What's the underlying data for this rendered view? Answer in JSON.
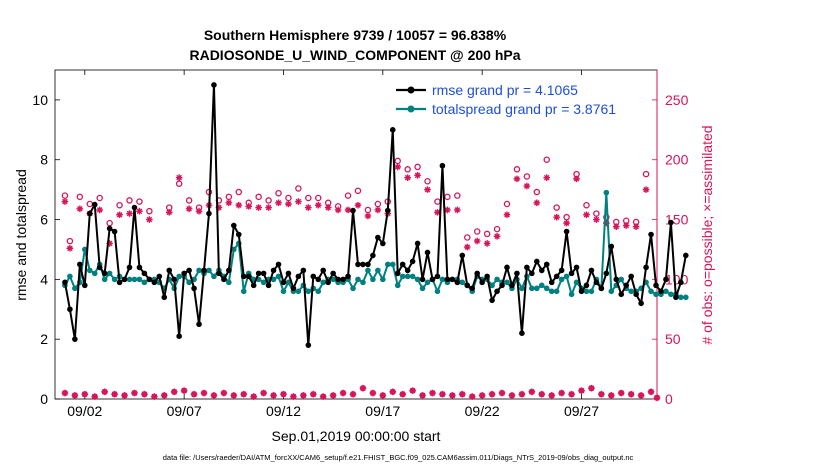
{
  "chart_data": {
    "type": "line",
    "title": "Southern Hemisphere 9739 / 10057 = 96.838%",
    "subtitle": "RADIOSONDE_U_WIND_COMPONENT @ 200 hPa",
    "xlabel": "Sep.01,2019 00:00:00 start",
    "ylabel_left": "rmse and totalspread",
    "ylabel_right": "# of obs: o=possible; ×=assimilated",
    "footnote": "data file: /Users/raeder/DAI/ATM_forcXX/CAM6_setup/f.e21.FHIST_BGC.f09_025.CAM6assim.011/Diags_NTrS_2019-09/obs_diag_output.nc",
    "xlim": [
      0.5,
      30.8
    ],
    "ylim_left": [
      0,
      11
    ],
    "ylim_right": [
      0,
      275
    ],
    "xticks": [
      2,
      7,
      12,
      17,
      22,
      27
    ],
    "xtick_labels": [
      "09/02",
      "09/07",
      "09/12",
      "09/17",
      "09/22",
      "09/27"
    ],
    "yticks_left": [
      0,
      2,
      4,
      6,
      8,
      10
    ],
    "yticks_right": [
      0,
      50,
      100,
      150,
      200,
      250
    ],
    "colors": {
      "rmse": "#000000",
      "spread": "#00807f",
      "obs": "#d8145a",
      "legend_text": "#1d4fd8"
    },
    "time_step": 0.25,
    "series": [
      {
        "name": "rmse grand pr = 4.1065",
        "values": [
          3.9,
          3.0,
          2.0,
          4.5,
          3.8,
          6.2,
          6.5,
          4.4,
          4.2,
          5.7,
          5.6,
          3.9,
          4.0,
          4.4,
          6.4,
          4.4,
          4.2,
          4.0,
          3.9,
          4.1,
          3.4,
          4.3,
          4.0,
          2.1,
          4.2,
          4.3,
          3.7,
          2.5,
          4.3,
          6.2,
          10.5,
          4.2,
          4.0,
          4.3,
          5.8,
          5.5,
          4.1,
          4.1,
          3.8,
          4.2,
          4.2,
          3.8,
          4.3,
          4.5,
          3.9,
          4.2,
          3.7,
          4.1,
          4.3,
          1.8,
          4.1,
          4.0,
          4.3,
          3.9,
          4.2,
          4.0,
          4.0,
          4.1,
          6.3,
          4.5,
          4.5,
          4.5,
          4.8,
          5.4,
          5.2,
          6.3,
          9.0,
          4.2,
          4.5,
          4.3,
          4.6,
          5.2,
          4.0,
          4.9,
          4.0,
          4.1,
          7.8,
          4.0,
          4.0,
          3.9,
          4.8,
          3.8,
          3.7,
          4.2,
          3.9,
          4.1,
          3.3,
          3.6,
          3.8,
          4.4,
          3.8,
          4.2,
          2.2,
          4.4,
          4.2,
          4.6,
          4.3,
          4.5,
          3.9,
          4.1,
          4.3,
          5.6,
          4.2,
          4.4,
          3.6,
          3.8,
          4.3,
          3.9,
          3.7,
          4.2,
          5.1,
          4.0,
          3.5,
          3.8,
          4.1,
          3.5,
          3.2,
          4.4,
          5.5,
          3.8,
          3.6,
          4.0,
          5.9,
          3.4,
          3.9,
          4.8
        ]
      },
      {
        "name": "totalspread grand pr = 3.8761",
        "values": [
          3.8,
          4.1,
          3.7,
          3.9,
          5.0,
          4.3,
          4.2,
          4.5,
          4.0,
          4.2,
          4.0,
          4.1,
          4.0,
          4.0,
          4.0,
          4.0,
          3.9,
          4.0,
          4.0,
          3.9,
          3.7,
          4.0,
          3.7,
          4.1,
          4.1,
          3.9,
          4.0,
          4.3,
          4.2,
          4.3,
          4.1,
          4.3,
          4.1,
          3.9,
          5.0,
          5.2,
          3.6,
          4.2,
          4.0,
          4.0,
          3.9,
          4.0,
          4.0,
          4.1,
          3.6,
          3.9,
          3.6,
          3.6,
          3.8,
          3.6,
          3.7,
          3.6,
          3.9,
          4.0,
          4.0,
          3.9,
          3.9,
          4.0,
          3.7,
          4.0,
          3.9,
          4.3,
          4.0,
          4.3,
          4.0,
          4.5,
          4.5,
          3.8,
          4.1,
          4.1,
          4.1,
          4.0,
          3.7,
          3.9,
          4.0,
          3.6,
          4.0,
          3.9,
          4.0,
          4.0,
          3.9,
          3.8,
          3.6,
          4.1,
          4.0,
          4.0,
          3.8,
          4.0,
          3.9,
          3.9,
          3.7,
          4.0,
          3.7,
          4.1,
          3.7,
          3.7,
          3.8,
          3.7,
          3.6,
          3.6,
          4.0,
          4.1,
          3.5,
          3.9,
          3.7,
          3.6,
          3.6,
          4.0,
          3.7,
          6.9,
          3.6,
          3.8,
          4.0,
          3.7,
          3.6,
          3.6,
          3.7,
          3.9,
          3.6,
          3.5,
          3.5,
          3.6,
          3.5,
          3.5,
          3.4,
          3.4
        ]
      }
    ],
    "obs_possible": [
      170,
      132,
      null,
      null,
      null,
      167,
      null,
      null,
      147,
      null,
      null,
      null,
      null,
      null,
      null,
      null,
      null,
      null,
      null,
      null,
      null,
      null,
      null,
      null,
      null,
      null,
      null,
      null,
      null,
      null,
      null,
      null,
      null,
      null,
      null,
      null,
      null,
      null,
      null,
      null,
      null,
      null,
      null,
      null,
      null,
      null,
      null,
      null,
      null,
      null,
      null,
      null,
      null,
      null,
      null,
      null,
      null,
      null,
      null,
      null,
      null,
      null,
      null,
      null,
      null,
      null,
      null,
      null,
      null,
      null,
      null,
      null,
      null,
      null,
      null,
      null,
      null,
      null,
      null,
      null,
      null,
      null,
      null,
      null,
      null,
      null,
      null,
      null,
      null,
      null,
      null,
      null,
      null,
      null,
      null,
      null,
      null,
      null,
      null,
      null,
      null,
      null,
      null,
      null,
      null,
      null,
      null,
      null,
      null,
      null,
      null,
      null,
      null,
      null,
      null,
      null,
      null,
      null,
      null,
      null,
      null,
      null,
      null,
      null,
      null,
      null
    ],
    "obs_possible_pts": [
      [
        1,
        170
      ],
      [
        1.25,
        132
      ],
      [
        1.75,
        169
      ],
      [
        2.25,
        163
      ],
      [
        2.75,
        168
      ],
      [
        3.25,
        147
      ],
      [
        3.75,
        162
      ],
      [
        4.25,
        166
      ],
      [
        4.75,
        165
      ],
      [
        5.25,
        157
      ],
      [
        6.25,
        160
      ],
      [
        6.75,
        180
      ],
      [
        7.25,
        166
      ],
      [
        7.75,
        160
      ],
      [
        8.25,
        173
      ],
      [
        8.75,
        166
      ],
      [
        9.25,
        169
      ],
      [
        9.75,
        173
      ],
      [
        10.25,
        164
      ],
      [
        10.75,
        169
      ],
      [
        11.25,
        166
      ],
      [
        11.75,
        172
      ],
      [
        12.25,
        168
      ],
      [
        12.75,
        176
      ],
      [
        13.25,
        168
      ],
      [
        13.75,
        168
      ],
      [
        14.25,
        164
      ],
      [
        14.75,
        161
      ],
      [
        15.25,
        170
      ],
      [
        15.75,
        174
      ],
      [
        16.25,
        158
      ],
      [
        16.75,
        163
      ],
      [
        17.25,
        165
      ],
      [
        17.75,
        199
      ],
      [
        18.25,
        192
      ],
      [
        18.75,
        194
      ],
      [
        19.25,
        182
      ],
      [
        19.75,
        165
      ],
      [
        20.25,
        169
      ],
      [
        20.75,
        170
      ],
      [
        21.25,
        135
      ],
      [
        21.75,
        140
      ],
      [
        22.25,
        138
      ],
      [
        22.75,
        142
      ],
      [
        23.25,
        163
      ],
      [
        23.75,
        192
      ],
      [
        24.25,
        186
      ],
      [
        24.75,
        173
      ],
      [
        25.25,
        200
      ],
      [
        25.75,
        160
      ],
      [
        26.25,
        152
      ],
      [
        26.75,
        188
      ],
      [
        27.25,
        162
      ],
      [
        27.75,
        155
      ],
      [
        28.25,
        152
      ],
      [
        28.75,
        148
      ],
      [
        29.25,
        149
      ],
      [
        29.75,
        148
      ],
      [
        30.25,
        188
      ]
    ],
    "obs_assim_pts": [
      [
        1,
        165
      ],
      [
        1.25,
        126
      ],
      [
        1.75,
        159
      ],
      [
        2.25,
        155
      ],
      [
        2.75,
        158
      ],
      [
        3.25,
        130
      ],
      [
        3.75,
        154
      ],
      [
        4.25,
        155
      ],
      [
        4.75,
        157
      ],
      [
        5.25,
        150
      ],
      [
        6.25,
        156
      ],
      [
        6.75,
        185
      ],
      [
        7.25,
        159
      ],
      [
        7.75,
        157
      ],
      [
        8.25,
        162
      ],
      [
        8.75,
        160
      ],
      [
        9.25,
        164
      ],
      [
        9.75,
        162
      ],
      [
        10.25,
        161
      ],
      [
        10.75,
        160
      ],
      [
        11.25,
        160
      ],
      [
        11.75,
        164
      ],
      [
        12.25,
        163
      ],
      [
        12.75,
        165
      ],
      [
        13.25,
        160
      ],
      [
        13.75,
        162
      ],
      [
        14.25,
        160
      ],
      [
        14.75,
        158
      ],
      [
        15.25,
        158
      ],
      [
        15.75,
        162
      ],
      [
        16.25,
        153
      ],
      [
        16.75,
        158
      ],
      [
        17.25,
        155
      ],
      [
        17.75,
        194
      ],
      [
        18.25,
        185
      ],
      [
        18.75,
        187
      ],
      [
        19.25,
        175
      ],
      [
        19.75,
        156
      ],
      [
        20.25,
        158
      ],
      [
        20.75,
        158
      ],
      [
        21.25,
        127
      ],
      [
        21.75,
        132
      ],
      [
        22.25,
        130
      ],
      [
        22.75,
        136
      ],
      [
        23.25,
        154
      ],
      [
        23.75,
        184
      ],
      [
        24.25,
        178
      ],
      [
        24.75,
        164
      ],
      [
        25.25,
        185
      ],
      [
        25.75,
        152
      ],
      [
        26.25,
        147
      ],
      [
        26.75,
        184
      ],
      [
        27.25,
        154
      ],
      [
        27.75,
        150
      ],
      [
        28.25,
        147
      ],
      [
        28.75,
        144
      ],
      [
        29.25,
        145
      ],
      [
        29.75,
        144
      ],
      [
        30.25,
        175
      ]
    ],
    "obs_bottom_pts": [
      [
        1,
        5
      ],
      [
        1.5,
        3
      ],
      [
        2,
        4
      ],
      [
        2.5,
        2
      ],
      [
        3,
        6
      ],
      [
        3.5,
        4
      ],
      [
        4,
        3
      ],
      [
        4.5,
        5
      ],
      [
        5,
        4
      ],
      [
        5.5,
        2
      ],
      [
        6,
        3
      ],
      [
        6.5,
        6
      ],
      [
        7,
        7
      ],
      [
        7.5,
        4
      ],
      [
        8,
        5
      ],
      [
        8.5,
        3
      ],
      [
        9,
        5
      ],
      [
        9.5,
        3
      ],
      [
        10,
        4
      ],
      [
        10.5,
        2
      ],
      [
        11,
        5
      ],
      [
        11.5,
        3
      ],
      [
        12,
        4
      ],
      [
        12.5,
        2
      ],
      [
        13,
        3
      ],
      [
        13.5,
        4
      ],
      [
        14,
        2
      ],
      [
        14.5,
        3
      ],
      [
        15,
        5
      ],
      [
        15.5,
        4
      ],
      [
        16,
        9
      ],
      [
        16.5,
        5
      ],
      [
        17,
        3
      ],
      [
        17.5,
        6
      ],
      [
        18,
        4
      ],
      [
        18.5,
        7
      ],
      [
        19,
        3
      ],
      [
        19.5,
        5
      ],
      [
        20,
        4
      ],
      [
        20.5,
        3
      ],
      [
        21,
        4
      ],
      [
        21.5,
        2
      ],
      [
        22,
        3
      ],
      [
        22.5,
        4
      ],
      [
        23,
        5
      ],
      [
        23.5,
        3
      ],
      [
        24,
        4
      ],
      [
        24.5,
        6
      ],
      [
        25,
        4
      ],
      [
        25.5,
        3
      ],
      [
        26,
        5
      ],
      [
        26.5,
        4
      ],
      [
        27,
        7
      ],
      [
        27.5,
        9
      ],
      [
        28,
        4
      ],
      [
        28.5,
        3
      ],
      [
        29,
        5
      ],
      [
        29.5,
        4
      ],
      [
        30,
        3
      ],
      [
        30.5,
        6
      ],
      [
        30.8,
        1
      ]
    ]
  }
}
